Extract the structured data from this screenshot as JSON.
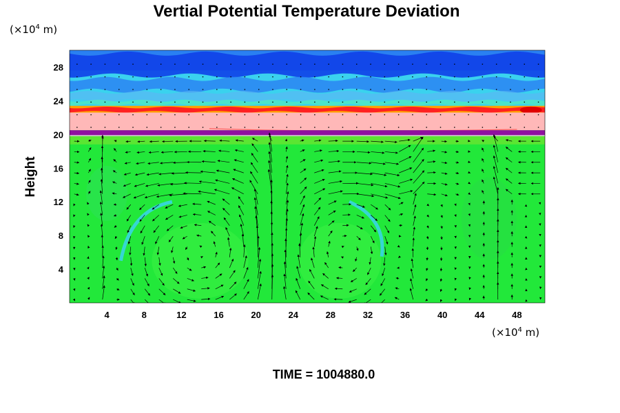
{
  "chart_data": {
    "type": "heatmap",
    "title": "Vertial Potential Temperature Deviation",
    "ylabel": "Height",
    "x_unit": {
      "prefix": "(×10",
      "exp": "4",
      "suffix": " m)"
    },
    "y_unit": {
      "prefix": "(×10",
      "exp": "4",
      "suffix": " m)"
    },
    "x_ticks": [
      4,
      8,
      12,
      16,
      20,
      24,
      28,
      32,
      36,
      40,
      44,
      48
    ],
    "y_ticks": [
      4,
      8,
      12,
      16,
      20,
      24,
      28
    ],
    "xlim": [
      0,
      51
    ],
    "ylim": [
      0,
      30
    ],
    "grid": false,
    "time_label": "TIME = 1004880.0",
    "colors": {
      "background_field": "#22e83a",
      "dark_blue": "#1040e8",
      "mid_blue": "#2a80f2",
      "cyan": "#3ad2ee",
      "red_band": "#ff2020",
      "orange_band": "#ffa000",
      "pink_layer": "#ffb8b8",
      "purple_layer": "#9010a0",
      "vector": "#000000"
    },
    "layers": [
      {
        "name": "upper-oscillating-layer",
        "from": 22.6,
        "to": 30
      },
      {
        "name": "warm-front-band",
        "from": 22.5,
        "to": 23.4
      },
      {
        "name": "pink-layer",
        "from": 20.5,
        "to": 22.6
      },
      {
        "name": "purple-layer",
        "from": 19.8,
        "to": 20.5
      },
      {
        "name": "lower-domain",
        "from": 0,
        "to": 19.8
      }
    ],
    "vortices": [
      {
        "center_x": 14,
        "center_y": 6,
        "radius_x": 8,
        "radius_y": 7.5,
        "rotation": "counterclockwise"
      },
      {
        "center_x": 29,
        "center_y": 6,
        "radius_x": 7,
        "radius_y": 8.5,
        "rotation": "clockwise"
      }
    ],
    "vector_grid": {
      "columns": 34,
      "rows": 16,
      "x_from": 0.5,
      "x_to": 50.5,
      "y_from": 0.4,
      "y_to": 19.2
    }
  }
}
